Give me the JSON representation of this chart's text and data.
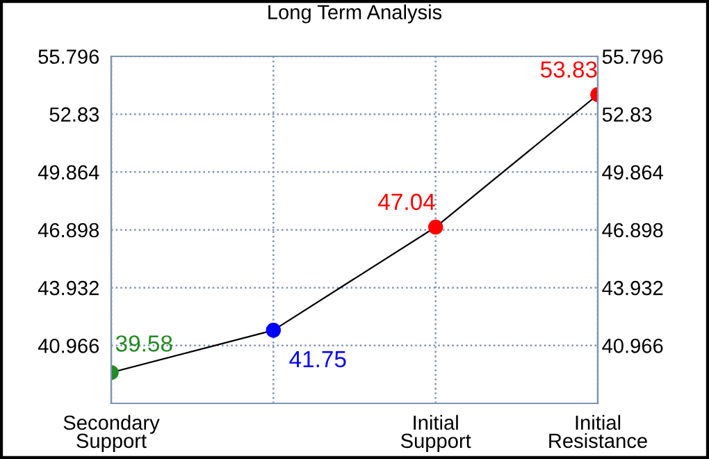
{
  "chart_data": {
    "type": "line",
    "title": "Long Term Analysis",
    "categories": [
      "Secondary\nSupport",
      null,
      "Initial\nSupport",
      "Initial\nResistance"
    ],
    "series": [
      {
        "color": "#000000",
        "colors": [
          "#228b22",
          "#0000ff",
          "#ff0000",
          "#ff0000"
        ],
        "values": [
          39.58,
          41.75,
          47.04,
          53.83
        ]
      }
    ],
    "ylim": [
      38.0,
      55.796
    ],
    "yticks": [
      40.966,
      43.932,
      46.898,
      49.864,
      52.83,
      55.796
    ],
    "y2lim": [
      38.0,
      55.796
    ],
    "y2ticks": [
      40.966,
      43.932,
      46.898,
      49.864,
      52.83,
      55.796
    ],
    "grid": true,
    "marker": "circle",
    "line_style": "solid",
    "data_labels": true
  }
}
